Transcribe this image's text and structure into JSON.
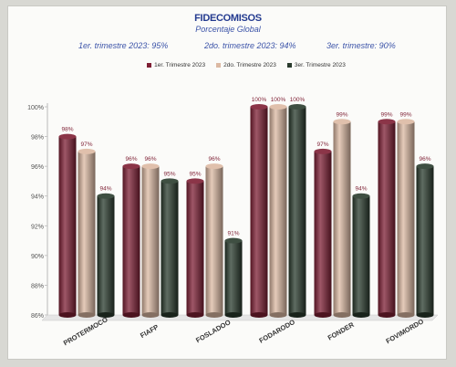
{
  "chart_data": {
    "type": "bar",
    "title": "FIDECOMISOS",
    "subtitle": "Porcentaje Global",
    "summary": [
      {
        "label": "1er. trimestre 2023: 95%"
      },
      {
        "label": "2do. trimestre 2023: 94%"
      },
      {
        "label": "3er. trimestre: 90%"
      }
    ],
    "categories": [
      "PROTERMOCO",
      "FIAFP",
      "FOSLADOO",
      "FODARODO",
      "FONDER",
      "FOVIMORDO"
    ],
    "series": [
      {
        "name": "1er. Trimestre 2023",
        "color": "#7e1f34",
        "values": [
          98,
          96,
          95,
          100,
          97,
          99
        ],
        "labels": [
          "98%",
          "96%",
          "95%",
          "100%",
          "97%",
          "99%"
        ]
      },
      {
        "name": "2do. Trimestre 2023",
        "color": "#dcb9a3",
        "values": [
          97,
          96,
          96,
          100,
          99,
          99
        ],
        "labels": [
          "97%",
          "96%",
          "96%",
          "100%",
          "99%",
          "99%"
        ]
      },
      {
        "name": "3er. Trimestre 2023",
        "color": "#2a3b2d",
        "values": [
          94,
          95,
          91,
          100,
          94,
          96
        ],
        "labels": [
          "94%",
          "95%",
          "91%",
          "100%",
          "94%",
          "96%"
        ]
      }
    ],
    "yticks": [
      "86%",
      "88%",
      "90%",
      "92%",
      "94%",
      "96%",
      "98%",
      "100%"
    ],
    "ylim": [
      86,
      100
    ],
    "legend": "top-center",
    "grid": false
  }
}
